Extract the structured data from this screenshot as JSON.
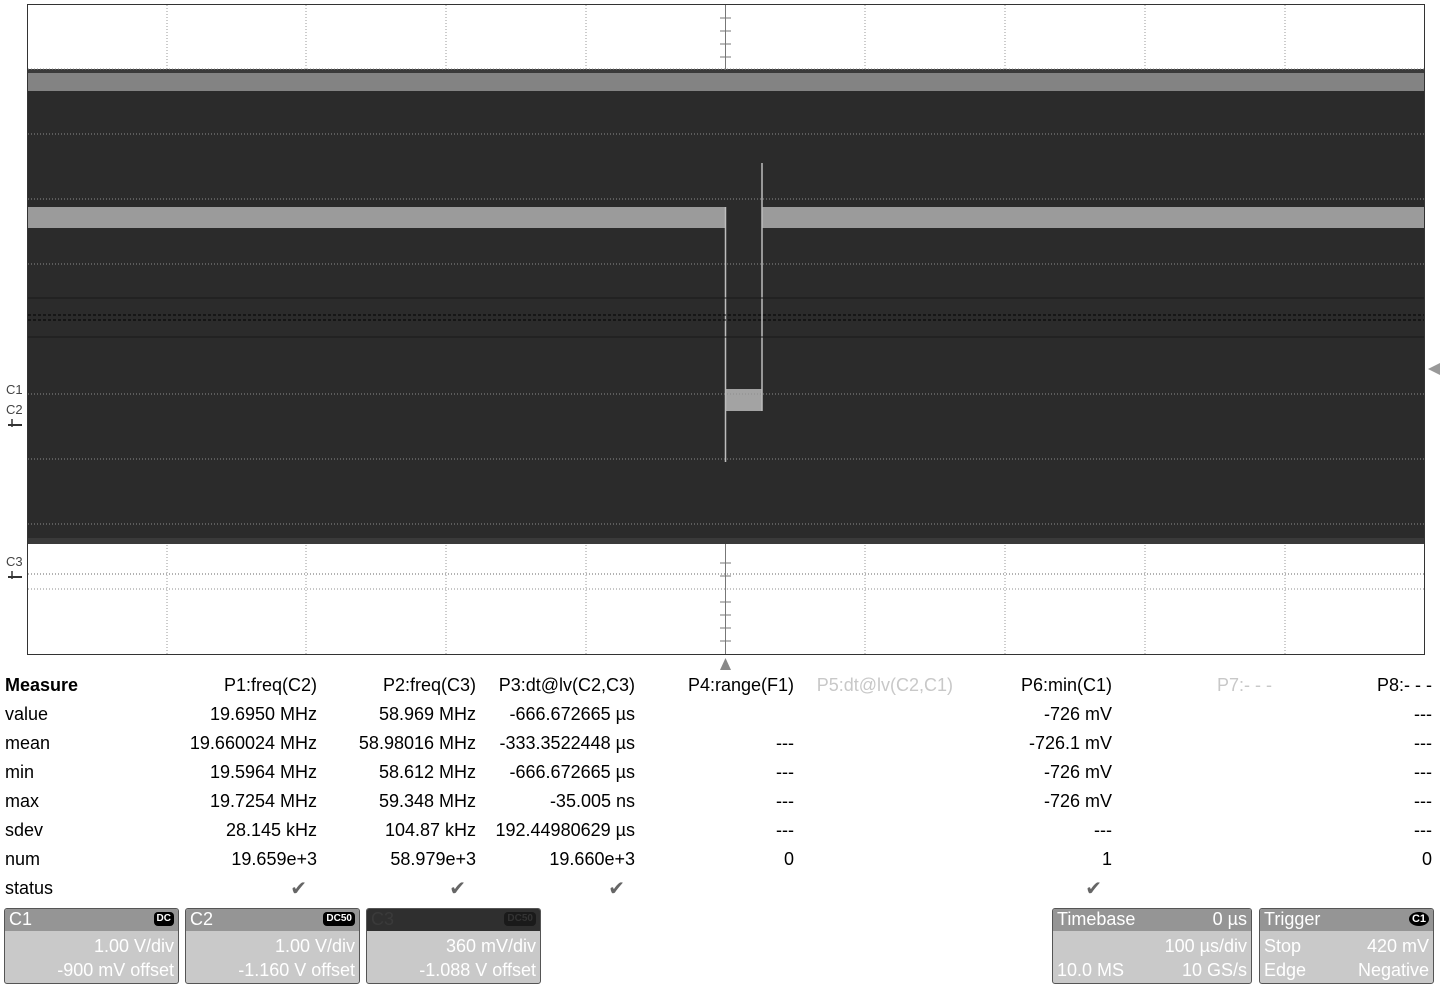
{
  "scope": {
    "channel_labels": {
      "c1": "C1",
      "c2": "C2",
      "c3": "C3"
    }
  },
  "measure": {
    "title": "Measure",
    "row_labels": [
      "value",
      "mean",
      "min",
      "max",
      "sdev",
      "num",
      "status"
    ],
    "params": [
      {
        "label": "P1:freq(C2)",
        "value": "19.6950 MHz",
        "mean": "19.660024 MHz",
        "min": "19.5964 MHz",
        "max": "19.7254 MHz",
        "sdev": "28.145 kHz",
        "num": "19.659e+3",
        "status": "✔"
      },
      {
        "label": "P2:freq(C3)",
        "value": "58.969 MHz",
        "mean": "58.98016 MHz",
        "min": "58.612 MHz",
        "max": "59.348 MHz",
        "sdev": "104.87 kHz",
        "num": "58.979e+3",
        "status": "✔"
      },
      {
        "label": "P3:dt@lv(C2,C3)",
        "value": "-666.672665 µs",
        "mean": "-333.3522448 µs",
        "min": "-666.672665 µs",
        "max": "-35.005 ns",
        "sdev": "192.44980629 µs",
        "num": "19.660e+3",
        "status": "✔"
      },
      {
        "label": "P4:range(F1)",
        "value": "",
        "mean": "---",
        "min": "---",
        "max": "---",
        "sdev": "---",
        "num": "0",
        "status": ""
      },
      {
        "label": "P5:dt@lv(C2,C1)",
        "value": "",
        "mean": "",
        "min": "",
        "max": "",
        "sdev": "",
        "num": "",
        "status": ""
      },
      {
        "label": "P6:min(C1)",
        "value": "-726 mV",
        "mean": "-726.1 mV",
        "min": "-726 mV",
        "max": "-726 mV",
        "sdev": "---",
        "num": "1",
        "status": "✔"
      },
      {
        "label": "P7:- - -",
        "value": "",
        "mean": "",
        "min": "",
        "max": "",
        "sdev": "",
        "num": "",
        "status": ""
      },
      {
        "label": "P8:- - -",
        "value": "---",
        "mean": "---",
        "min": "---",
        "max": "---",
        "sdev": "---",
        "num": "0",
        "status": ""
      }
    ]
  },
  "panels": {
    "c1": {
      "name": "C1",
      "coupling": "DC",
      "vdiv": "1.00 V/div",
      "offset": "-900 mV offset"
    },
    "c2": {
      "name": "C2",
      "coupling": "DC50",
      "vdiv": "1.00 V/div",
      "offset": "-1.160 V offset"
    },
    "c3": {
      "name": "C3",
      "coupling": "DC50",
      "vdiv": "360 mV/div",
      "offset": "-1.088 V offset"
    },
    "timebase": {
      "name": "Timebase",
      "delay": "0 µs",
      "tdiv": "100 µs/div",
      "samples": "10.0 MS",
      "rate": "10 GS/s"
    },
    "trigger": {
      "name": "Trigger",
      "source": "C1",
      "mode": "Stop",
      "level": "420 mV",
      "type": "Edge",
      "slope": "Negative"
    }
  }
}
